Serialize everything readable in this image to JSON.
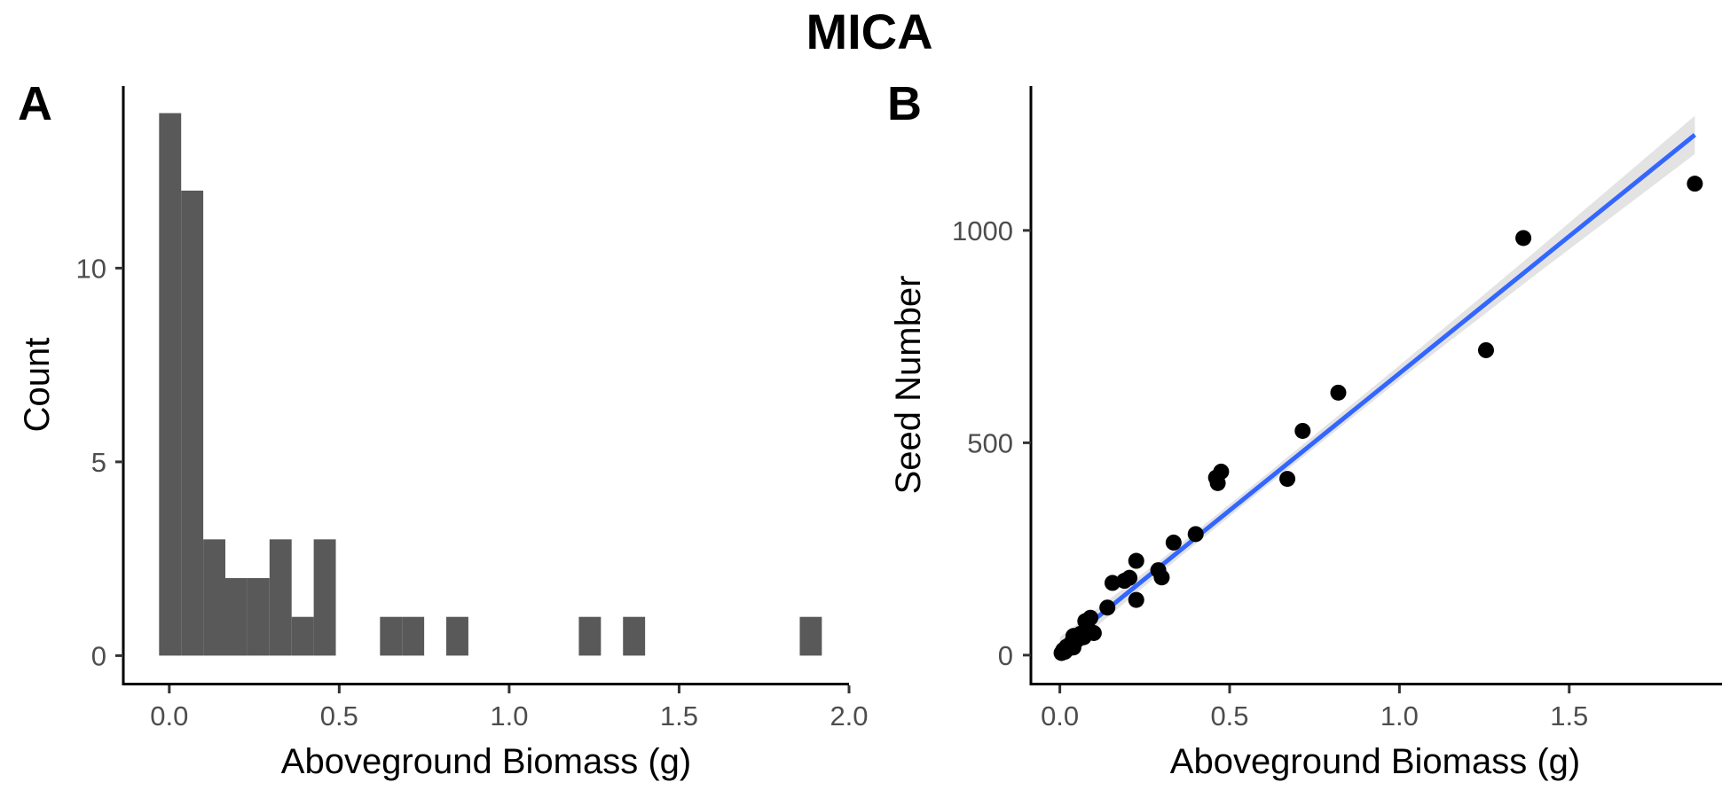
{
  "figure": {
    "title": "MICA",
    "panel_a_tag": "A",
    "panel_b_tag": "B"
  },
  "colors": {
    "bar_fill": "#595959",
    "point_fill": "#000000",
    "fit_line": "#3366FF",
    "confidence_band": "#e3e3e3",
    "tick_text": "#4d4d4d"
  },
  "chart_data": [
    {
      "panel": "A",
      "type": "bar",
      "subtype": "histogram",
      "xlabel": "Aboveground Biomass (g)",
      "ylabel": "Count",
      "xlim": [
        -0.13,
        2.0
      ],
      "ylim": [
        -0.7,
        14.7
      ],
      "xticks": [
        0.0,
        0.5,
        1.0,
        1.5,
        2.0
      ],
      "xtick_labels": [
        "0.0",
        "0.5",
        "1.0",
        "1.5",
        "2.0"
      ],
      "yticks": [
        0,
        5,
        10
      ],
      "ytick_labels": [
        "0",
        "5",
        "10"
      ],
      "grid": false,
      "bins": [
        {
          "x0": -0.03,
          "x1": 0.035,
          "count": 14
        },
        {
          "x0": 0.035,
          "x1": 0.1,
          "count": 12
        },
        {
          "x0": 0.1,
          "x1": 0.165,
          "count": 3
        },
        {
          "x0": 0.165,
          "x1": 0.23,
          "count": 2
        },
        {
          "x0": 0.23,
          "x1": 0.295,
          "count": 2
        },
        {
          "x0": 0.295,
          "x1": 0.36,
          "count": 3
        },
        {
          "x0": 0.36,
          "x1": 0.425,
          "count": 1
        },
        {
          "x0": 0.425,
          "x1": 0.49,
          "count": 3
        },
        {
          "x0": 0.62,
          "x1": 0.685,
          "count": 1
        },
        {
          "x0": 0.685,
          "x1": 0.75,
          "count": 1
        },
        {
          "x0": 0.815,
          "x1": 0.88,
          "count": 1
        },
        {
          "x0": 1.205,
          "x1": 1.27,
          "count": 1
        },
        {
          "x0": 1.335,
          "x1": 1.4,
          "count": 1
        },
        {
          "x0": 1.855,
          "x1": 1.92,
          "count": 1
        }
      ]
    },
    {
      "panel": "B",
      "type": "scatter",
      "xlabel": "Aboveground Biomass (g)",
      "ylabel": "Seed Number",
      "xlim": [
        -0.08,
        1.95
      ],
      "ylim": [
        -65,
        1340
      ],
      "xticks": [
        0.0,
        0.5,
        1.0,
        1.5
      ],
      "xtick_labels": [
        "0.0",
        "0.5",
        "1.0",
        "1.5"
      ],
      "yticks": [
        0,
        500,
        1000
      ],
      "ytick_labels": [
        "0",
        "500",
        "1000"
      ],
      "grid": false,
      "points": [
        {
          "x": 0.005,
          "y": 5
        },
        {
          "x": 0.01,
          "y": 12
        },
        {
          "x": 0.015,
          "y": 8
        },
        {
          "x": 0.02,
          "y": 20
        },
        {
          "x": 0.025,
          "y": 15
        },
        {
          "x": 0.03,
          "y": 25
        },
        {
          "x": 0.035,
          "y": 30
        },
        {
          "x": 0.04,
          "y": 18
        },
        {
          "x": 0.04,
          "y": 45
        },
        {
          "x": 0.05,
          "y": 35
        },
        {
          "x": 0.06,
          "y": 50
        },
        {
          "x": 0.07,
          "y": 42
        },
        {
          "x": 0.075,
          "y": 80
        },
        {
          "x": 0.085,
          "y": 60
        },
        {
          "x": 0.09,
          "y": 88
        },
        {
          "x": 0.1,
          "y": 52
        },
        {
          "x": 0.14,
          "y": 112
        },
        {
          "x": 0.155,
          "y": 170
        },
        {
          "x": 0.19,
          "y": 175
        },
        {
          "x": 0.205,
          "y": 182
        },
        {
          "x": 0.225,
          "y": 130
        },
        {
          "x": 0.225,
          "y": 222
        },
        {
          "x": 0.29,
          "y": 200
        },
        {
          "x": 0.3,
          "y": 183
        },
        {
          "x": 0.335,
          "y": 265
        },
        {
          "x": 0.4,
          "y": 285
        },
        {
          "x": 0.46,
          "y": 418
        },
        {
          "x": 0.465,
          "y": 405
        },
        {
          "x": 0.475,
          "y": 432
        },
        {
          "x": 0.67,
          "y": 415
        },
        {
          "x": 0.715,
          "y": 528
        },
        {
          "x": 0.82,
          "y": 618
        },
        {
          "x": 1.255,
          "y": 718
        },
        {
          "x": 1.365,
          "y": 982
        },
        {
          "x": 1.87,
          "y": 1110
        }
      ],
      "fit": {
        "x0": 0.0,
        "y0": 18,
        "x1": 1.87,
        "y1": 1225
      },
      "confidence_band": [
        {
          "x": 0.0,
          "lo": -5,
          "hi": 42
        },
        {
          "x": 0.3,
          "lo": 196,
          "hi": 226
        },
        {
          "x": 0.6,
          "lo": 392,
          "hi": 420
        },
        {
          "x": 1.0,
          "lo": 648,
          "hi": 682
        },
        {
          "x": 1.4,
          "lo": 895,
          "hi": 950
        },
        {
          "x": 1.87,
          "lo": 1180,
          "hi": 1270
        }
      ]
    }
  ]
}
